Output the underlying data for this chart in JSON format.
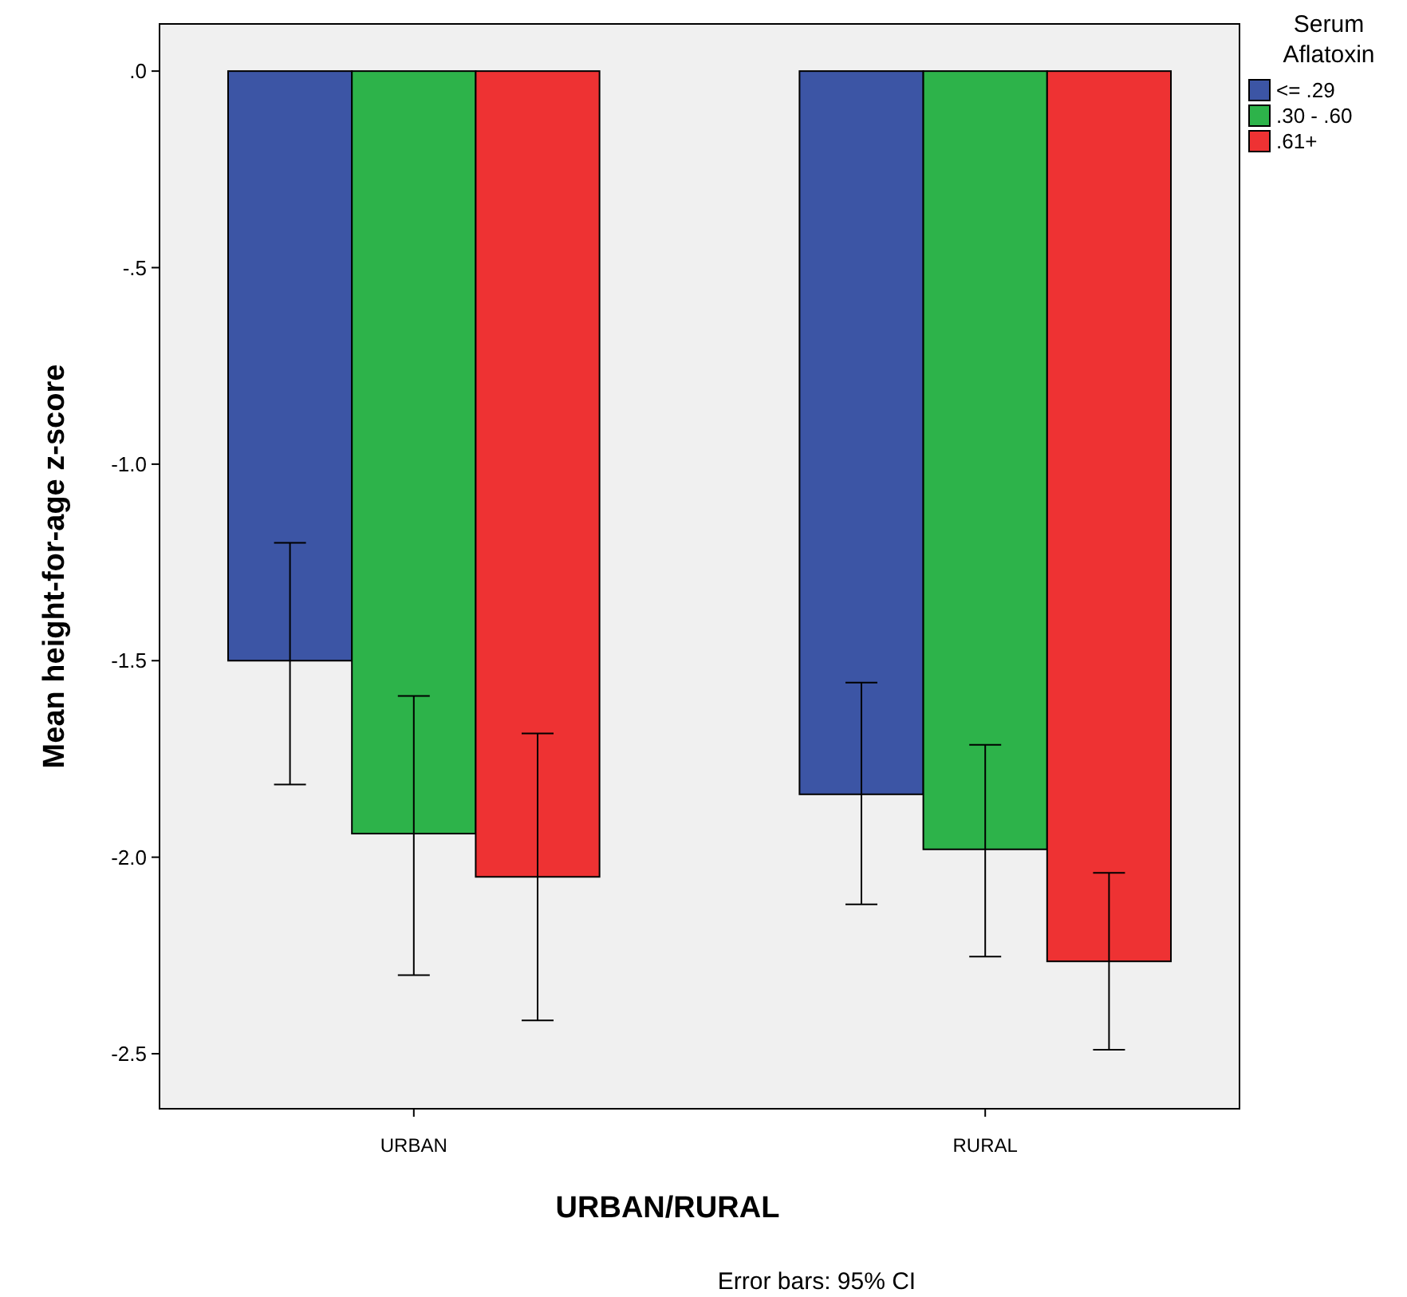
{
  "chart_data": {
    "type": "bar",
    "xlabel": "URBAN/RURAL",
    "ylabel": "Mean height-for-age z-score",
    "legend_title": "Serum Aflatoxin",
    "legend": "right",
    "grid": false,
    "categories": [
      "URBAN",
      "RURAL"
    ],
    "series": [
      {
        "name": "<= .29",
        "color": "#3c55a5",
        "values": [
          -1.5,
          -1.84
        ],
        "errors": [
          [
            -1.815,
            -1.2
          ],
          [
            -2.12,
            -1.556
          ]
        ]
      },
      {
        "name": ".30 - .60",
        "color": "#2db34a",
        "values": [
          -1.94,
          -1.98
        ],
        "errors": [
          [
            -2.3,
            -1.59
          ],
          [
            -2.253,
            -1.714
          ]
        ]
      },
      {
        "name": ".61+",
        "color": "#ee3233",
        "values": [
          -2.05,
          -2.265
        ],
        "errors": [
          [
            -2.415,
            -1.685
          ],
          [
            -2.49,
            -2.04
          ]
        ]
      }
    ],
    "ylim": [
      -2.64,
      0.12
    ],
    "yticks": [
      {
        "value": 0,
        "label": ".0"
      },
      {
        "value": -0.5,
        "label": "-.5"
      },
      {
        "value": -1,
        "label": "-1.0"
      },
      {
        "value": -1.5,
        "label": "-1.5"
      },
      {
        "value": -2,
        "label": "-2.0"
      },
      {
        "value": -2.5,
        "label": "-2.5"
      }
    ],
    "annotations": [
      "Error bars: 95% CI"
    ]
  }
}
